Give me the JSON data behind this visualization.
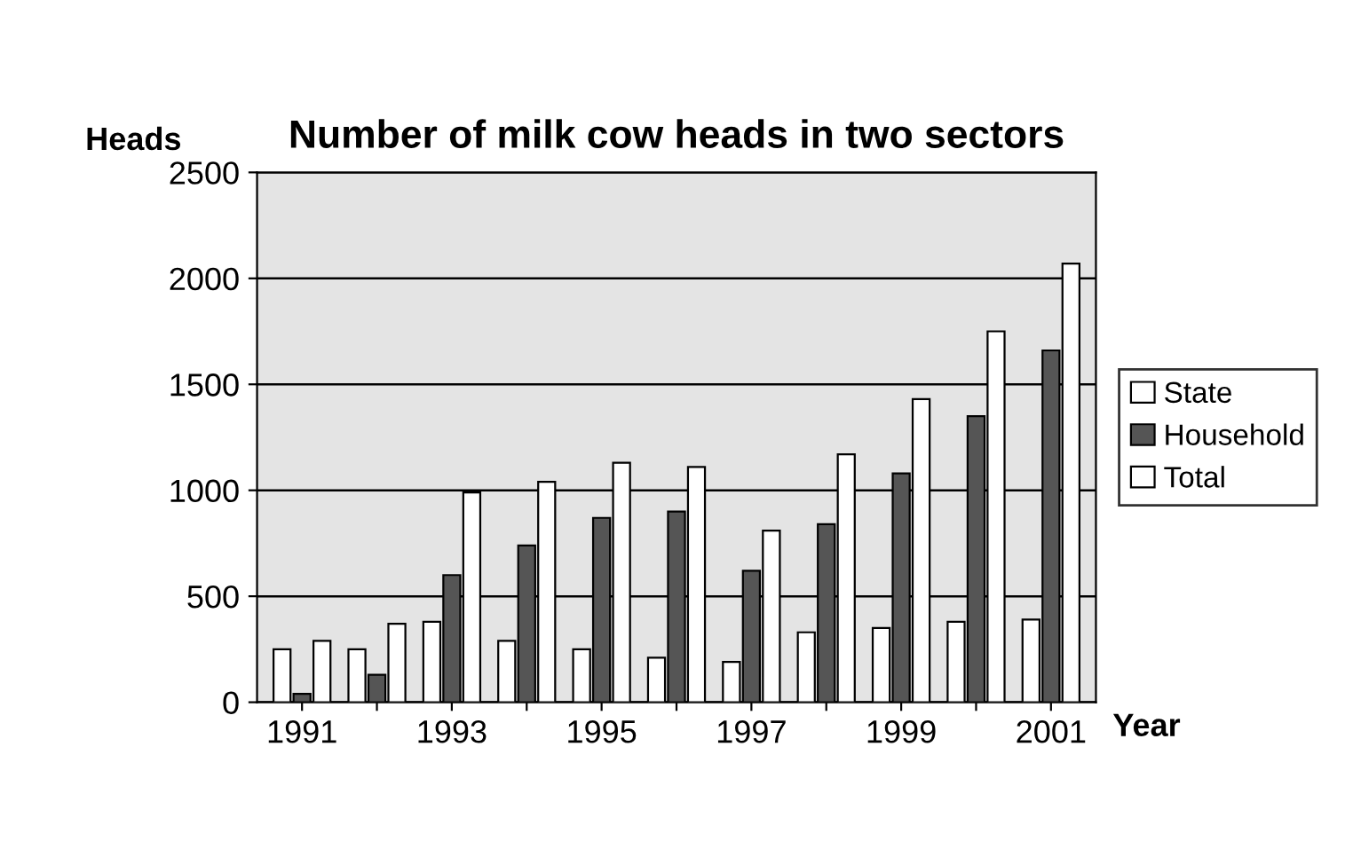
{
  "chart_data": {
    "type": "bar",
    "title": "Number of milk cow heads in two sectors",
    "xlabel": "Year",
    "ylabel": "Heads",
    "categories": [
      "1991",
      null,
      "1993",
      null,
      "1995",
      null,
      "1997",
      null,
      "1999",
      null,
      "2001"
    ],
    "series": [
      {
        "name": "State",
        "color": "#ffffff",
        "values": [
          250,
          250,
          380,
          290,
          250,
          210,
          190,
          330,
          350,
          380,
          390
        ]
      },
      {
        "name": "Household",
        "color": "#555555",
        "values": [
          40,
          130,
          600,
          740,
          870,
          900,
          620,
          840,
          1080,
          1350,
          1660
        ]
      },
      {
        "name": "Total",
        "color": "#ffffff",
        "values": [
          290,
          370,
          990,
          1040,
          1130,
          1110,
          810,
          1170,
          1430,
          1750,
          2070
        ]
      }
    ],
    "ylim": [
      0,
      2500
    ],
    "yticks": [
      0,
      500,
      1000,
      1500,
      2000,
      2500
    ],
    "grid": "y",
    "legend": "right"
  }
}
